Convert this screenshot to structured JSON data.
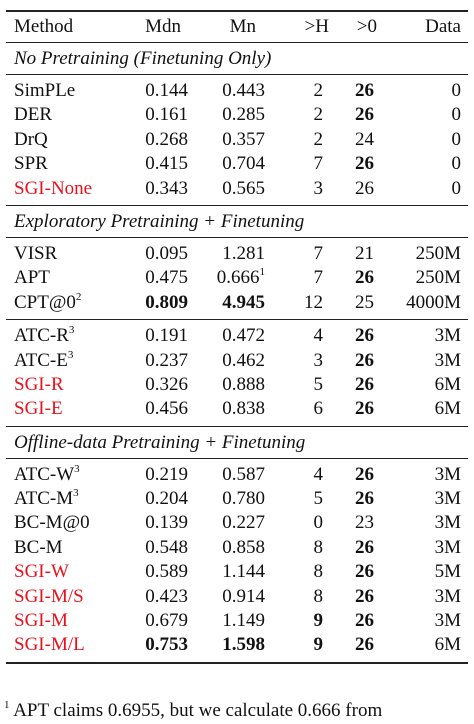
{
  "header": {
    "method": "Method",
    "mdn": "Mdn",
    "mn": "Mn",
    "h": ">H",
    "z": ">0",
    "data": "Data"
  },
  "sections": {
    "no_pretraining": {
      "title": "No Pretraining (Finetuning Only)",
      "rows": [
        {
          "method": "SimPLe",
          "mdn": "0.144",
          "mn": "0.443",
          "h": "2",
          "z": "26",
          "data": "0"
        },
        {
          "method": "DER",
          "mdn": "0.161",
          "mn": "0.285",
          "h": "2",
          "z": "26",
          "data": "0"
        },
        {
          "method": "DrQ",
          "mdn": "0.268",
          "mn": "0.357",
          "h": "2",
          "z": "24",
          "data": "0"
        },
        {
          "method": "SPR",
          "mdn": "0.415",
          "mn": "0.704",
          "h": "7",
          "z": "26",
          "data": "0"
        },
        {
          "method": "SGI-None",
          "mdn": "0.343",
          "mn": "0.565",
          "h": "3",
          "z": "26",
          "data": "0"
        }
      ]
    },
    "exploratory": {
      "title": "Exploratory Pretraining + Finetuning",
      "rows": [
        {
          "method": "VISR",
          "mdn": "0.095",
          "mn": "1.281",
          "h": "7",
          "z": "21",
          "data": "250M"
        },
        {
          "method": "APT",
          "mdn": "0.475",
          "mn": "0.666",
          "mn_sup": "1",
          "h": "7",
          "z": "26",
          "data": "250M"
        },
        {
          "method": "CPT@0",
          "method_sup": "2",
          "mdn": "0.809",
          "mn": "4.945",
          "h": "12",
          "z": "25",
          "data": "4000M"
        }
      ],
      "rows2": [
        {
          "method": "ATC-R",
          "method_sup": "3",
          "mdn": "0.191",
          "mn": "0.472",
          "h": "4",
          "z": "26",
          "data": "3M"
        },
        {
          "method": "ATC-E",
          "method_sup": "3",
          "mdn": "0.237",
          "mn": "0.462",
          "h": "3",
          "z": "26",
          "data": "3M"
        },
        {
          "method": "SGI-R",
          "mdn": "0.326",
          "mn": "0.888",
          "h": "5",
          "z": "26",
          "data": "6M"
        },
        {
          "method": "SGI-E",
          "mdn": "0.456",
          "mn": "0.838",
          "h": "6",
          "z": "26",
          "data": "6M"
        }
      ]
    },
    "offline": {
      "title": "Offline-data Pretraining + Finetuning",
      "rows": [
        {
          "method": "ATC-W",
          "method_sup": "3",
          "mdn": "0.219",
          "mn": "0.587",
          "h": "4",
          "z": "26",
          "data": "3M"
        },
        {
          "method": "ATC-M",
          "method_sup": "3",
          "mdn": "0.204",
          "mn": "0.780",
          "h": "5",
          "z": "26",
          "data": "3M"
        },
        {
          "method": "BC-M@0",
          "mdn": "0.139",
          "mn": "0.227",
          "h": "0",
          "z": "23",
          "data": "3M"
        },
        {
          "method": "BC-M",
          "mdn": "0.548",
          "mn": "0.858",
          "h": "8",
          "z": "26",
          "data": "3M"
        },
        {
          "method": "SGI-W",
          "mdn": "0.589",
          "mn": "1.144",
          "h": "8",
          "z": "26",
          "data": "5M"
        },
        {
          "method": "SGI-M/S",
          "mdn": "0.423",
          "mn": "0.914",
          "h": "8",
          "z": "26",
          "data": "3M"
        },
        {
          "method": "SGI-M",
          "mdn": "0.679",
          "mn": "1.149",
          "h": "9",
          "z": "26",
          "data": "3M"
        },
        {
          "method": "SGI-M/L",
          "mdn": "0.753",
          "mn": "1.598",
          "h": "9",
          "z": "26",
          "data": "6M"
        }
      ]
    }
  },
  "footnote": {
    "mark": "1",
    "text": "APT claims 0.6955, but we calculate 0.666 from"
  },
  "colors": {
    "sgi_text": "#e8111b"
  }
}
